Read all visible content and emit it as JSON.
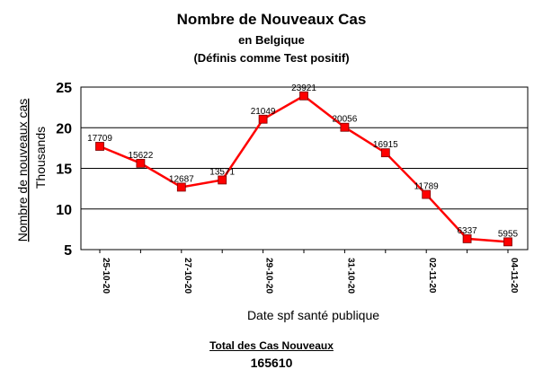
{
  "chart_data": {
    "type": "line",
    "title": "Nombre de Nouveaux Cas",
    "subtitle_1": "en Belgique",
    "subtitle_2": "(Définis comme Test positif)",
    "xlabel": "Date spf santé publique",
    "ylabel": "Nombre de nouveaux cas",
    "yunit": "Thousands",
    "ylim": [
      5,
      25
    ],
    "yticks": [
      5,
      10,
      15,
      20,
      25
    ],
    "grid": true,
    "x": [
      "25-10-20",
      "26-10-20",
      "27-10-20",
      "28-10-20",
      "29-10-20",
      "30-10-20",
      "31-10-20",
      "01-11-20",
      "02-11-20",
      "03-11-20",
      "04-11-20"
    ],
    "xtick_labels": [
      "25-10-20",
      "27-10-20",
      "29-10-20",
      "31-10-20",
      "02-11-20",
      "04-11-20"
    ],
    "series": [
      {
        "values": [
          17709,
          15622,
          12687,
          13571,
          21049,
          23921,
          20056,
          16915,
          11789,
          6337,
          5955
        ],
        "color": "#ff0000"
      }
    ]
  },
  "summary": {
    "label": "Total des Cas Nouveaux",
    "value": "165610"
  }
}
